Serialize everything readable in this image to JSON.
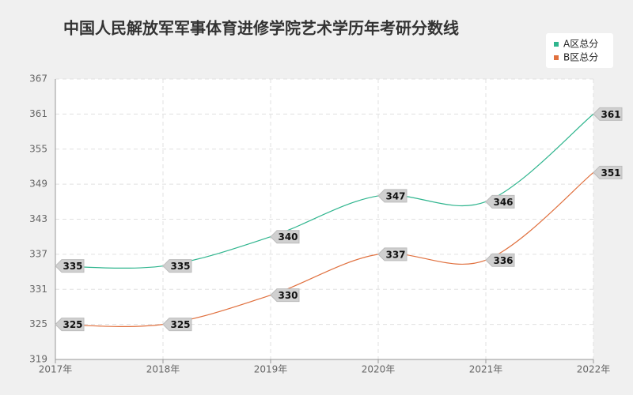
{
  "chart_data": {
    "type": "line",
    "title": "中国人民解放军军事体育进修学院艺术学历年考研分数线",
    "categories": [
      "2017年",
      "2018年",
      "2019年",
      "2020年",
      "2021年",
      "2022年"
    ],
    "series": [
      {
        "name": "A区总分",
        "color": "#2fb58e",
        "values": [
          335,
          335,
          340,
          347,
          346,
          361
        ]
      },
      {
        "name": "B区总分",
        "color": "#e0703e",
        "values": [
          325,
          325,
          330,
          337,
          336,
          351
        ]
      }
    ],
    "ylim": [
      319,
      367
    ],
    "yticks": [
      319,
      325,
      331,
      337,
      343,
      349,
      355,
      361,
      367
    ],
    "grid": true,
    "legend": "top-right"
  }
}
